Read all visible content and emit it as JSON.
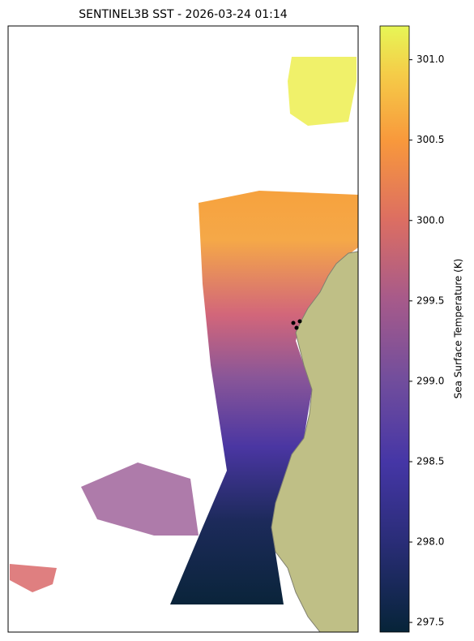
{
  "chart_data": {
    "type": "map",
    "title": "SENTINEL3B SST - 2026-03-24 01:14",
    "colorbar_label": "Sea Surface Temperature (K)",
    "clim": [
      297.44,
      301.21
    ],
    "cticks": [
      {
        "value": 297.5,
        "label": "297.5"
      },
      {
        "value": 298,
        "label": "298.0"
      },
      {
        "value": 298.5,
        "label": "298.5"
      },
      {
        "value": 299,
        "label": "299.0"
      },
      {
        "value": 299.5,
        "label": "299.5"
      },
      {
        "value": 300,
        "label": "300.0"
      },
      {
        "value": 300.5,
        "label": "300.5"
      },
      {
        "value": 301,
        "label": "301.0"
      }
    ]
  }
}
